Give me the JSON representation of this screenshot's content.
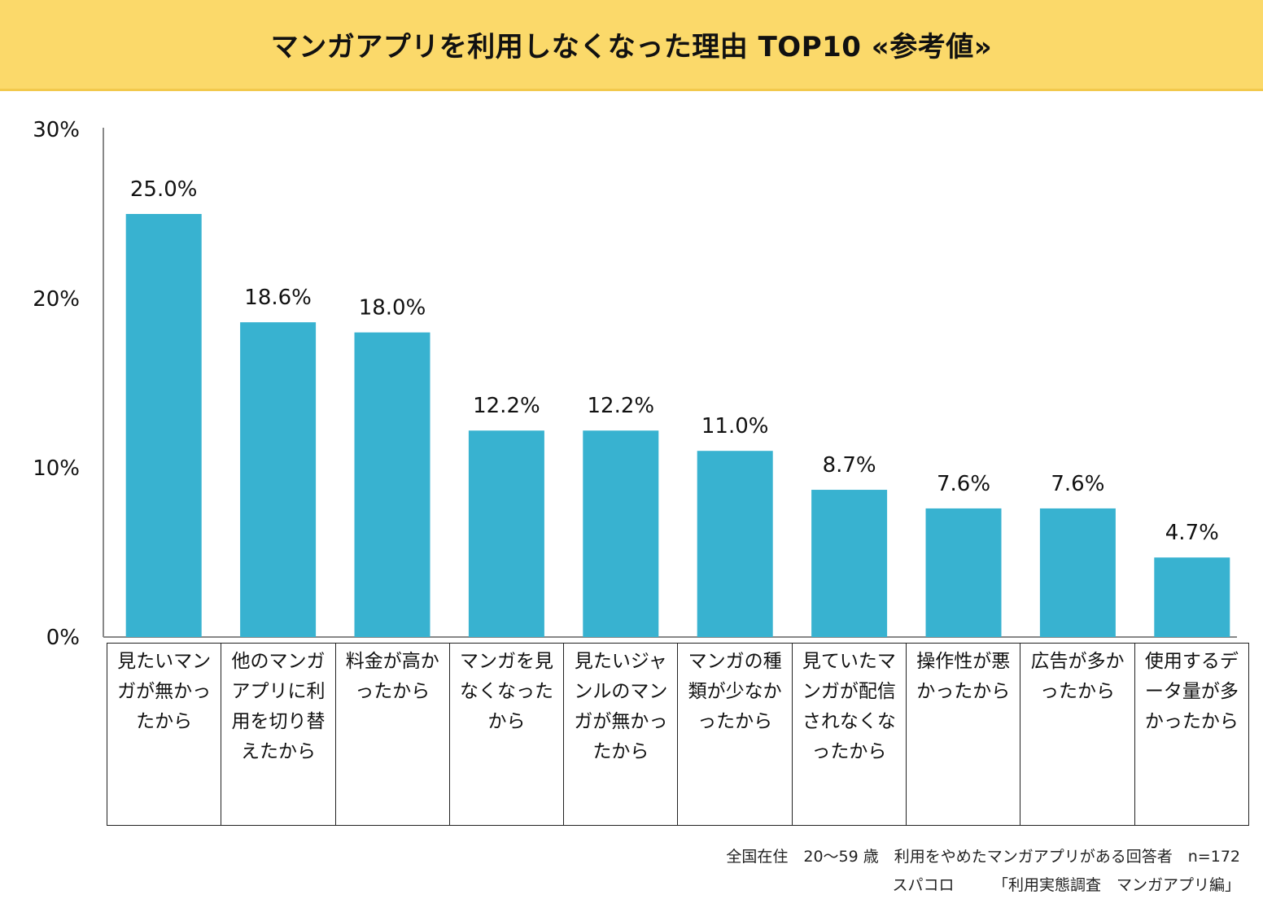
{
  "title": "マンガアプリを利用しなくなった理由 TOP10 «参考値»",
  "colors": {
    "banner": "#fbd96a",
    "bar": "#38b2d0",
    "axis": "#888888"
  },
  "chart_data": {
    "type": "bar",
    "title": "マンガアプリを利用しなくなった理由 TOP10 «参考値»",
    "categories": [
      "見たいマンガが無かったから",
      "他のマンガアプリに利用を切り替えたから",
      "料金が高かったから",
      "マンガを見なくなったから",
      "見たいジャンルのマンガが無かったから",
      "マンガの種類が少なかったから",
      "見ていたマンガが配信されなくなったから",
      "操作性が悪かったから",
      "広告が多かったから",
      "使用するデータ量が多かったから"
    ],
    "values": [
      25.0,
      18.6,
      18.0,
      12.2,
      12.2,
      11.0,
      8.7,
      7.6,
      7.6,
      4.7
    ],
    "value_labels": [
      "25.0%",
      "18.6%",
      "18.0%",
      "12.2%",
      "12.2%",
      "11.0%",
      "8.7%",
      "7.6%",
      "7.6%",
      "4.7%"
    ],
    "ylim": [
      0,
      30
    ],
    "yticks": [
      0,
      10,
      20,
      30
    ],
    "ytick_labels": [
      "0%",
      "10%",
      "20%",
      "30%"
    ],
    "xlabel": "",
    "ylabel": "",
    "grid": false
  },
  "source": {
    "line1": "全国在住　20～59 歳　利用をやめたマンガアプリがある回答者　n=172",
    "line2": "スパコロ　　　「利用実態調査　マンガアプリ編」"
  }
}
